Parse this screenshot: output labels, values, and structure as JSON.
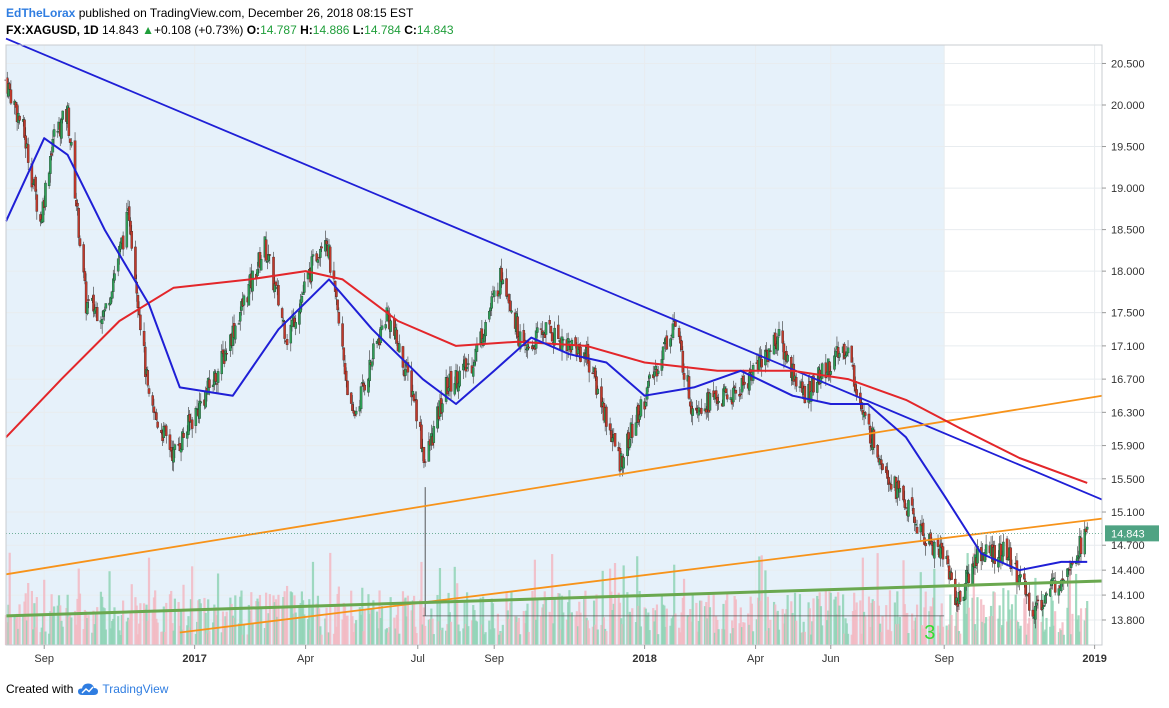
{
  "header": {
    "author": "EdTheLorax",
    "published_text": " published on TradingView.com, December 26, 2018 08:15 EST",
    "symbol": "FX:XAGUSD, 1D",
    "last": "14.843",
    "change": "+0.108 (+0.73%)",
    "open_label": "O:",
    "open": "14.787",
    "high_label": "H:",
    "high": "14.886",
    "low_label": "L:",
    "low": "14.784",
    "close_label": "C:",
    "close": "14.843"
  },
  "footer": {
    "created_with": "Created with",
    "brand": "TradingView"
  },
  "colors": {
    "candle_up": "#2e9e57",
    "candle_down": "#c0392b",
    "wick": "#333333",
    "ma_fast": "#1f1fd6",
    "ma_slow": "#e3262a",
    "trend_blue": "#1f1fd6",
    "trend_orange": "#f7931a",
    "trend_green": "#6aa84f",
    "vol_up": "#8fd3b5",
    "vol_down": "#f2b8c2",
    "highlight_bg": "#e6f1fa"
  },
  "annotation": {
    "label": "3",
    "color": "#33dd33"
  },
  "chart_data": {
    "type": "candlestick",
    "y_axis": {
      "ticks": [
        "20.500",
        "20.000",
        "19.500",
        "19.000",
        "18.500",
        "18.000",
        "17.500",
        "17.100",
        "16.700",
        "16.300",
        "15.900",
        "15.500",
        "15.100",
        "14.700",
        "14.400",
        "14.100",
        "13.800"
      ],
      "tick_values": [
        20.5,
        20.0,
        19.5,
        19.0,
        18.5,
        18.0,
        17.5,
        17.1,
        16.7,
        16.3,
        15.9,
        15.5,
        15.1,
        14.7,
        14.4,
        14.1,
        13.8
      ],
      "last_price_label": "14.843",
      "last_price": 14.843
    },
    "x_axis": {
      "ticks": [
        "Sep",
        "2017",
        "Apr",
        "Jul",
        "Sep",
        "2018",
        "Apr",
        "Jun",
        "Sep",
        "2019"
      ],
      "tick_dates": [
        "2016-09-01",
        "2017-01-01",
        "2017-04-01",
        "2017-07-01",
        "2017-09-01",
        "2018-01-01",
        "2018-04-01",
        "2018-06-01",
        "2018-09-01",
        "2019-01-01"
      ]
    },
    "range": {
      "start": "2016-08-01",
      "end": "2019-01-07"
    },
    "highlight_range": [
      "2016-08-01",
      "2018-09-01"
    ],
    "price_path": [
      {
        "date": "2016-08-01",
        "price": 20.3
      },
      {
        "date": "2016-08-15",
        "price": 19.7
      },
      {
        "date": "2016-08-29",
        "price": 18.6
      },
      {
        "date": "2016-09-08",
        "price": 19.6
      },
      {
        "date": "2016-09-20",
        "price": 19.9
      },
      {
        "date": "2016-10-05",
        "price": 17.6
      },
      {
        "date": "2016-10-20",
        "price": 17.5
      },
      {
        "date": "2016-11-09",
        "price": 18.7
      },
      {
        "date": "2016-11-25",
        "price": 16.4
      },
      {
        "date": "2016-12-15",
        "price": 15.8
      },
      {
        "date": "2017-01-20",
        "price": 16.8
      },
      {
        "date": "2017-02-27",
        "price": 18.3
      },
      {
        "date": "2017-03-17",
        "price": 17.2
      },
      {
        "date": "2017-04-17",
        "price": 18.5
      },
      {
        "date": "2017-05-09",
        "price": 16.2
      },
      {
        "date": "2017-06-06",
        "price": 17.5
      },
      {
        "date": "2017-06-28",
        "price": 16.5
      },
      {
        "date": "2017-07-07",
        "price": 15.7
      },
      {
        "date": "2017-07-24",
        "price": 16.6
      },
      {
        "date": "2017-08-14",
        "price": 16.9
      },
      {
        "date": "2017-09-08",
        "price": 18.0
      },
      {
        "date": "2017-09-25",
        "price": 17.0
      },
      {
        "date": "2017-10-12",
        "price": 17.3
      },
      {
        "date": "2017-11-15",
        "price": 17.0
      },
      {
        "date": "2017-12-12",
        "price": 15.7
      },
      {
        "date": "2018-01-25",
        "price": 17.4
      },
      {
        "date": "2018-02-08",
        "price": 16.4
      },
      {
        "date": "2018-03-15",
        "price": 16.5
      },
      {
        "date": "2018-04-19",
        "price": 17.2
      },
      {
        "date": "2018-05-10",
        "price": 16.5
      },
      {
        "date": "2018-06-14",
        "price": 17.1
      },
      {
        "date": "2018-06-28",
        "price": 16.2
      },
      {
        "date": "2018-07-20",
        "price": 15.5
      },
      {
        "date": "2018-08-15",
        "price": 14.8
      },
      {
        "date": "2018-09-01",
        "price": 14.6
      },
      {
        "date": "2018-09-12",
        "price": 14.0
      },
      {
        "date": "2018-09-28",
        "price": 14.6
      },
      {
        "date": "2018-10-22",
        "price": 14.6
      },
      {
        "date": "2018-11-13",
        "price": 13.9
      },
      {
        "date": "2018-12-03",
        "price": 14.3
      },
      {
        "date": "2018-12-26",
        "price": 14.84
      }
    ],
    "ma_fast": [
      {
        "date": "2016-08-01",
        "price": 18.6
      },
      {
        "date": "2016-09-01",
        "price": 19.6
      },
      {
        "date": "2016-09-20",
        "price": 19.4
      },
      {
        "date": "2016-10-20",
        "price": 18.5
      },
      {
        "date": "2016-11-25",
        "price": 17.6
      },
      {
        "date": "2016-12-20",
        "price": 16.6
      },
      {
        "date": "2017-02-01",
        "price": 16.5
      },
      {
        "date": "2017-03-10",
        "price": 17.3
      },
      {
        "date": "2017-04-20",
        "price": 17.9
      },
      {
        "date": "2017-05-25",
        "price": 17.3
      },
      {
        "date": "2017-07-05",
        "price": 16.7
      },
      {
        "date": "2017-08-01",
        "price": 16.4
      },
      {
        "date": "2017-09-01",
        "price": 16.8
      },
      {
        "date": "2017-10-01",
        "price": 17.2
      },
      {
        "date": "2017-11-01",
        "price": 17.0
      },
      {
        "date": "2017-12-01",
        "price": 16.9
      },
      {
        "date": "2018-01-01",
        "price": 16.5
      },
      {
        "date": "2018-02-10",
        "price": 16.6
      },
      {
        "date": "2018-03-20",
        "price": 16.8
      },
      {
        "date": "2018-05-01",
        "price": 16.5
      },
      {
        "date": "2018-06-01",
        "price": 16.4
      },
      {
        "date": "2018-07-01",
        "price": 16.4
      },
      {
        "date": "2018-08-01",
        "price": 16.0
      },
      {
        "date": "2018-09-01",
        "price": 15.3
      },
      {
        "date": "2018-10-01",
        "price": 14.6
      },
      {
        "date": "2018-11-01",
        "price": 14.4
      },
      {
        "date": "2018-12-05",
        "price": 14.5
      },
      {
        "date": "2018-12-26",
        "price": 14.5
      }
    ],
    "ma_slow": [
      {
        "date": "2016-08-01",
        "price": 16.0
      },
      {
        "date": "2016-09-15",
        "price": 16.7
      },
      {
        "date": "2016-11-01",
        "price": 17.4
      },
      {
        "date": "2016-12-15",
        "price": 17.8
      },
      {
        "date": "2017-02-15",
        "price": 17.9
      },
      {
        "date": "2017-04-01",
        "price": 18.0
      },
      {
        "date": "2017-05-01",
        "price": 17.9
      },
      {
        "date": "2017-06-15",
        "price": 17.4
      },
      {
        "date": "2017-08-01",
        "price": 17.1
      },
      {
        "date": "2017-09-20",
        "price": 17.15
      },
      {
        "date": "2017-11-15",
        "price": 17.1
      },
      {
        "date": "2018-01-01",
        "price": 16.9
      },
      {
        "date": "2018-03-01",
        "price": 16.8
      },
      {
        "date": "2018-05-01",
        "price": 16.8
      },
      {
        "date": "2018-06-15",
        "price": 16.7
      },
      {
        "date": "2018-08-01",
        "price": 16.45
      },
      {
        "date": "2018-09-15",
        "price": 16.1
      },
      {
        "date": "2018-11-01",
        "price": 15.75
      },
      {
        "date": "2018-12-26",
        "price": 15.45
      }
    ],
    "trendlines": [
      {
        "color": "trend_blue",
        "from": {
          "date": "2016-08-01",
          "price": 20.8
        },
        "to": {
          "date": "2019-01-07",
          "price": 15.25
        }
      },
      {
        "color": "trend_orange",
        "from": {
          "date": "2016-08-01",
          "price": 14.35
        },
        "to": {
          "date": "2019-01-07",
          "price": 16.5
        }
      },
      {
        "color": "trend_orange",
        "from": {
          "date": "2016-12-20",
          "price": 13.65
        },
        "to": {
          "date": "2019-01-07",
          "price": 15.02
        }
      },
      {
        "color": "trend_green",
        "from": {
          "date": "2016-08-01",
          "price": 13.85
        },
        "to": {
          "date": "2019-01-07",
          "price": 14.27
        }
      }
    ],
    "horizontal_line": {
      "price": 13.85,
      "from": "2017-07-05",
      "to": "2018-09-01"
    },
    "wick_spike": {
      "date": "2017-07-07",
      "low": 13.85
    },
    "annotation_point": {
      "date": "2018-09-01",
      "price": 13.75
    }
  }
}
